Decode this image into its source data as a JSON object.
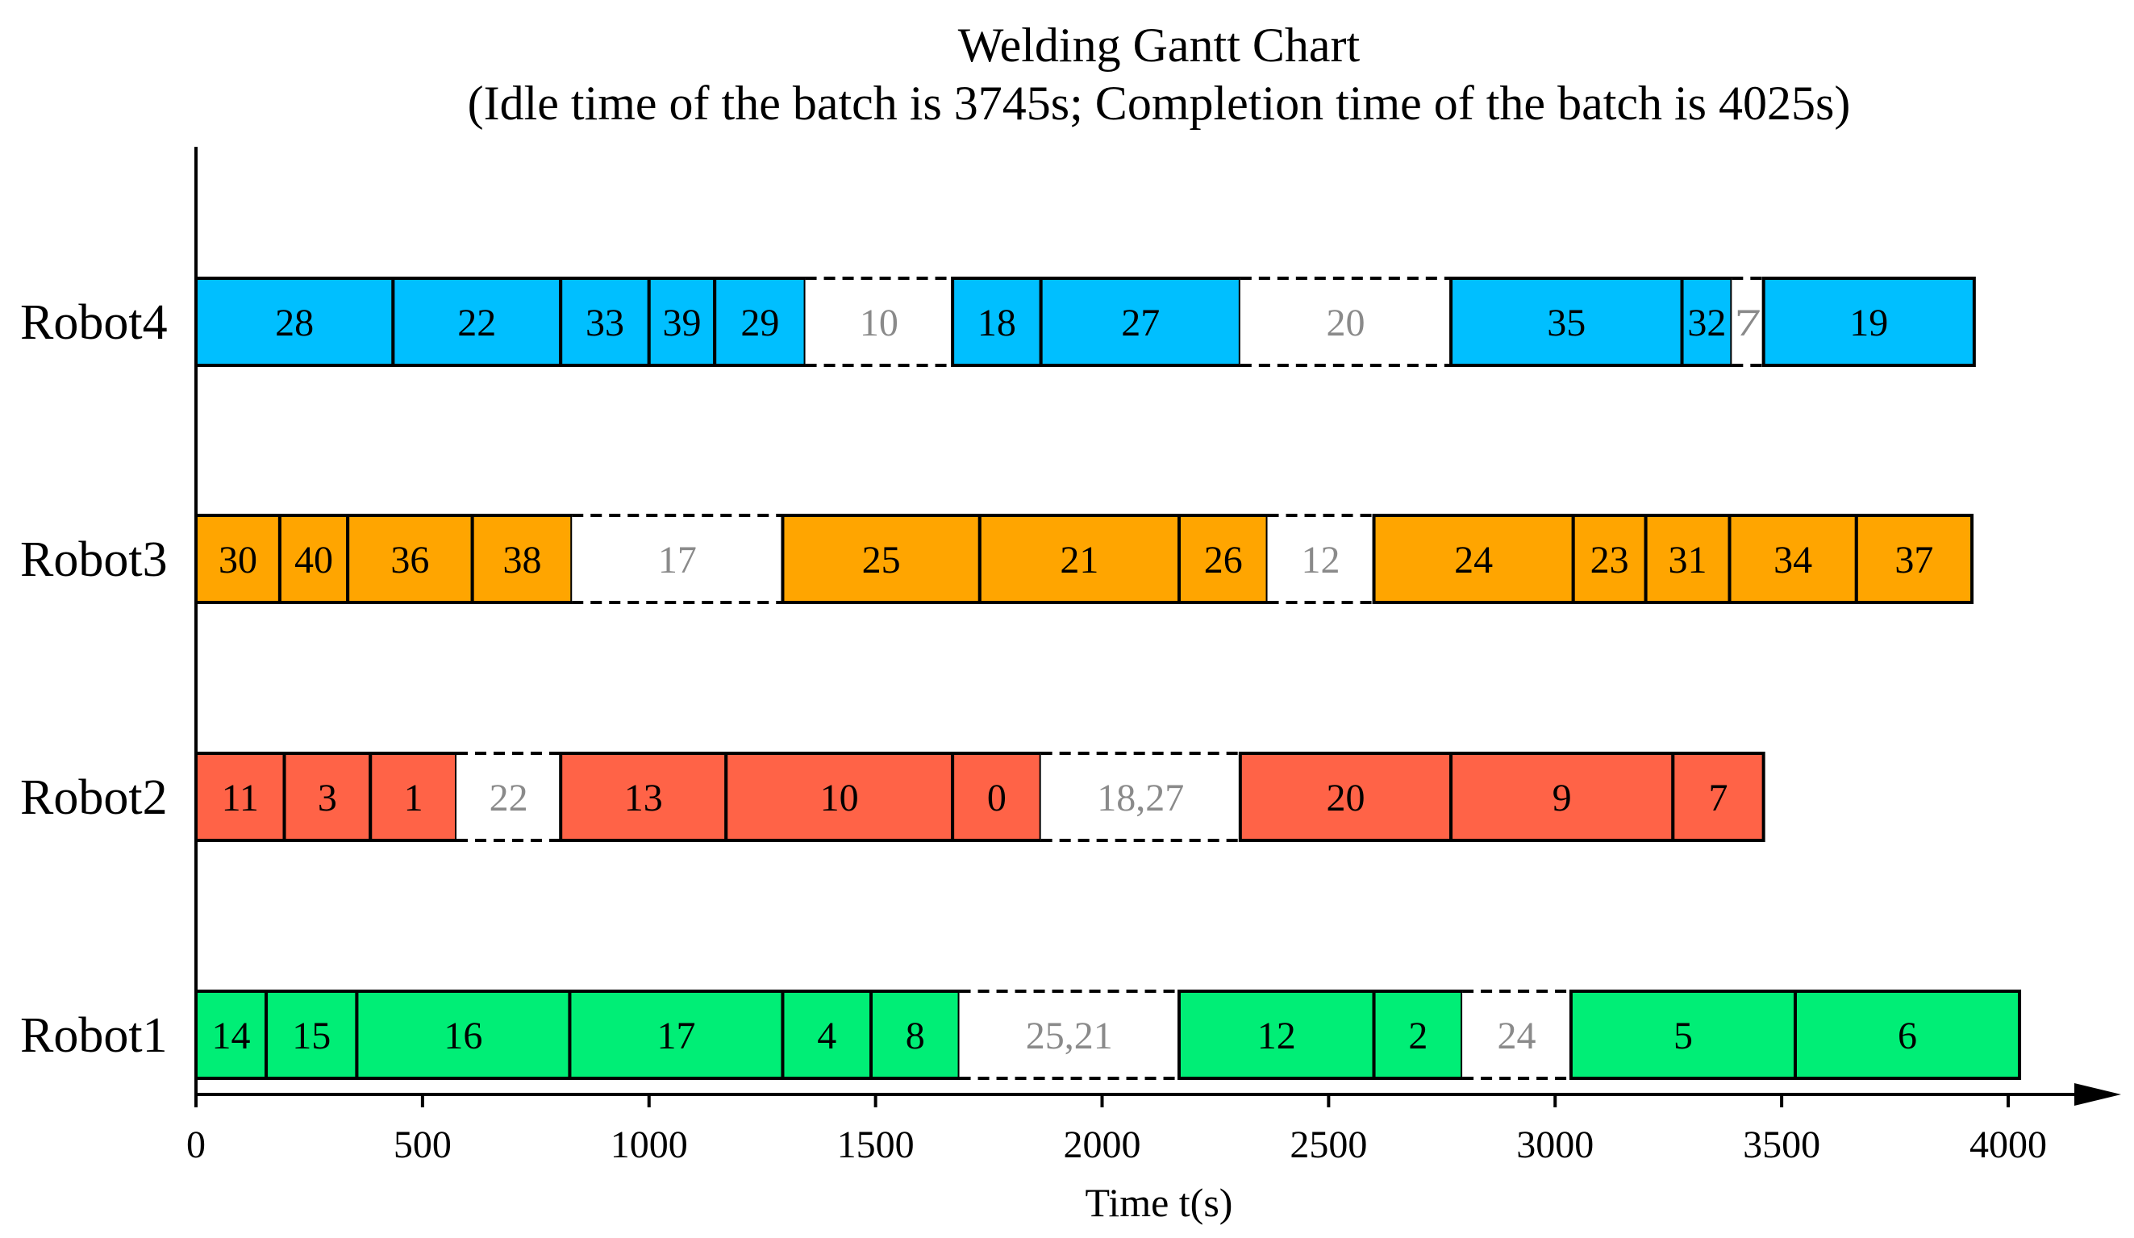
{
  "chart_data": {
    "type": "gantt",
    "title": "Welding Gantt Chart",
    "subtitle": "(Idle time of the batch is 3745s; Completion time of the batch is 4025s)",
    "xlabel": "Time t(s)",
    "xlim": [
      0,
      4000
    ],
    "xticks": [
      0,
      500,
      1000,
      1500,
      2000,
      2500,
      3000,
      3500,
      4000
    ],
    "colors": {
      "Robot4": "#00BFFF",
      "Robot3": "#FFA500",
      "Robot2": "#FF6347",
      "Robot1": "#00EE76",
      "idle": "#ffffff"
    },
    "robots": [
      {
        "name": "Robot4",
        "segments": [
          {
            "label": "28",
            "start": 0,
            "end": 435,
            "type": "task"
          },
          {
            "label": "22",
            "start": 435,
            "end": 805,
            "type": "task"
          },
          {
            "label": "33",
            "start": 805,
            "end": 1000,
            "type": "task"
          },
          {
            "label": "39",
            "start": 1000,
            "end": 1145,
            "type": "task"
          },
          {
            "label": "29",
            "start": 1145,
            "end": 1345,
            "type": "task"
          },
          {
            "label": "10",
            "start": 1345,
            "end": 1670,
            "type": "idle"
          },
          {
            "label": "18",
            "start": 1670,
            "end": 1865,
            "type": "task"
          },
          {
            "label": "27",
            "start": 1865,
            "end": 2305,
            "type": "task"
          },
          {
            "label": "20",
            "start": 2305,
            "end": 2770,
            "type": "idle"
          },
          {
            "label": "35",
            "start": 2770,
            "end": 3280,
            "type": "task"
          },
          {
            "label": "32",
            "start": 3280,
            "end": 3390,
            "type": "task"
          },
          {
            "label": "7",
            "start": 3390,
            "end": 3460,
            "type": "idle"
          },
          {
            "label": "19",
            "start": 3460,
            "end": 3925,
            "type": "task"
          }
        ]
      },
      {
        "name": "Robot3",
        "segments": [
          {
            "label": "30",
            "start": 0,
            "end": 185,
            "type": "task"
          },
          {
            "label": "40",
            "start": 185,
            "end": 335,
            "type": "task"
          },
          {
            "label": "36",
            "start": 335,
            "end": 610,
            "type": "task"
          },
          {
            "label": "38",
            "start": 610,
            "end": 830,
            "type": "task"
          },
          {
            "label": "17",
            "start": 830,
            "end": 1295,
            "type": "idle"
          },
          {
            "label": "25",
            "start": 1295,
            "end": 1730,
            "type": "task"
          },
          {
            "label": "21",
            "start": 1730,
            "end": 2170,
            "type": "task"
          },
          {
            "label": "26",
            "start": 2170,
            "end": 2365,
            "type": "task"
          },
          {
            "label": "12",
            "start": 2365,
            "end": 2600,
            "type": "idle"
          },
          {
            "label": "24",
            "start": 2600,
            "end": 3040,
            "type": "task"
          },
          {
            "label": "23",
            "start": 3040,
            "end": 3200,
            "type": "task"
          },
          {
            "label": "31",
            "start": 3200,
            "end": 3385,
            "type": "task"
          },
          {
            "label": "34",
            "start": 3385,
            "end": 3665,
            "type": "task"
          },
          {
            "label": "37",
            "start": 3665,
            "end": 3920,
            "type": "task"
          }
        ]
      },
      {
        "name": "Robot2",
        "segments": [
          {
            "label": "11",
            "start": 0,
            "end": 195,
            "type": "task"
          },
          {
            "label": "3",
            "start": 195,
            "end": 385,
            "type": "task"
          },
          {
            "label": "1",
            "start": 385,
            "end": 575,
            "type": "task"
          },
          {
            "label": "22",
            "start": 575,
            "end": 805,
            "type": "idle"
          },
          {
            "label": "13",
            "start": 805,
            "end": 1170,
            "type": "task"
          },
          {
            "label": "10",
            "start": 1170,
            "end": 1670,
            "type": "task"
          },
          {
            "label": "0",
            "start": 1670,
            "end": 1865,
            "type": "task"
          },
          {
            "label": "18,27",
            "start": 1865,
            "end": 2305,
            "type": "idle"
          },
          {
            "label": "20",
            "start": 2305,
            "end": 2770,
            "type": "task"
          },
          {
            "label": "9",
            "start": 2770,
            "end": 3260,
            "type": "task"
          },
          {
            "label": "7",
            "start": 3260,
            "end": 3460,
            "type": "task"
          }
        ]
      },
      {
        "name": "Robot1",
        "segments": [
          {
            "label": "14",
            "start": 0,
            "end": 155,
            "type": "task"
          },
          {
            "label": "15",
            "start": 155,
            "end": 355,
            "type": "task"
          },
          {
            "label": "16",
            "start": 355,
            "end": 825,
            "type": "task"
          },
          {
            "label": "17",
            "start": 825,
            "end": 1295,
            "type": "task"
          },
          {
            "label": "4",
            "start": 1295,
            "end": 1490,
            "type": "task"
          },
          {
            "label": "8",
            "start": 1490,
            "end": 1685,
            "type": "task"
          },
          {
            "label": "25,21",
            "start": 1685,
            "end": 2170,
            "type": "idle"
          },
          {
            "label": "12",
            "start": 2170,
            "end": 2600,
            "type": "task"
          },
          {
            "label": "2",
            "start": 2600,
            "end": 2795,
            "type": "task"
          },
          {
            "label": "24",
            "start": 2795,
            "end": 3035,
            "type": "idle"
          },
          {
            "label": "5",
            "start": 3035,
            "end": 3530,
            "type": "task"
          },
          {
            "label": "6",
            "start": 3530,
            "end": 4025,
            "type": "task"
          }
        ]
      }
    ]
  }
}
